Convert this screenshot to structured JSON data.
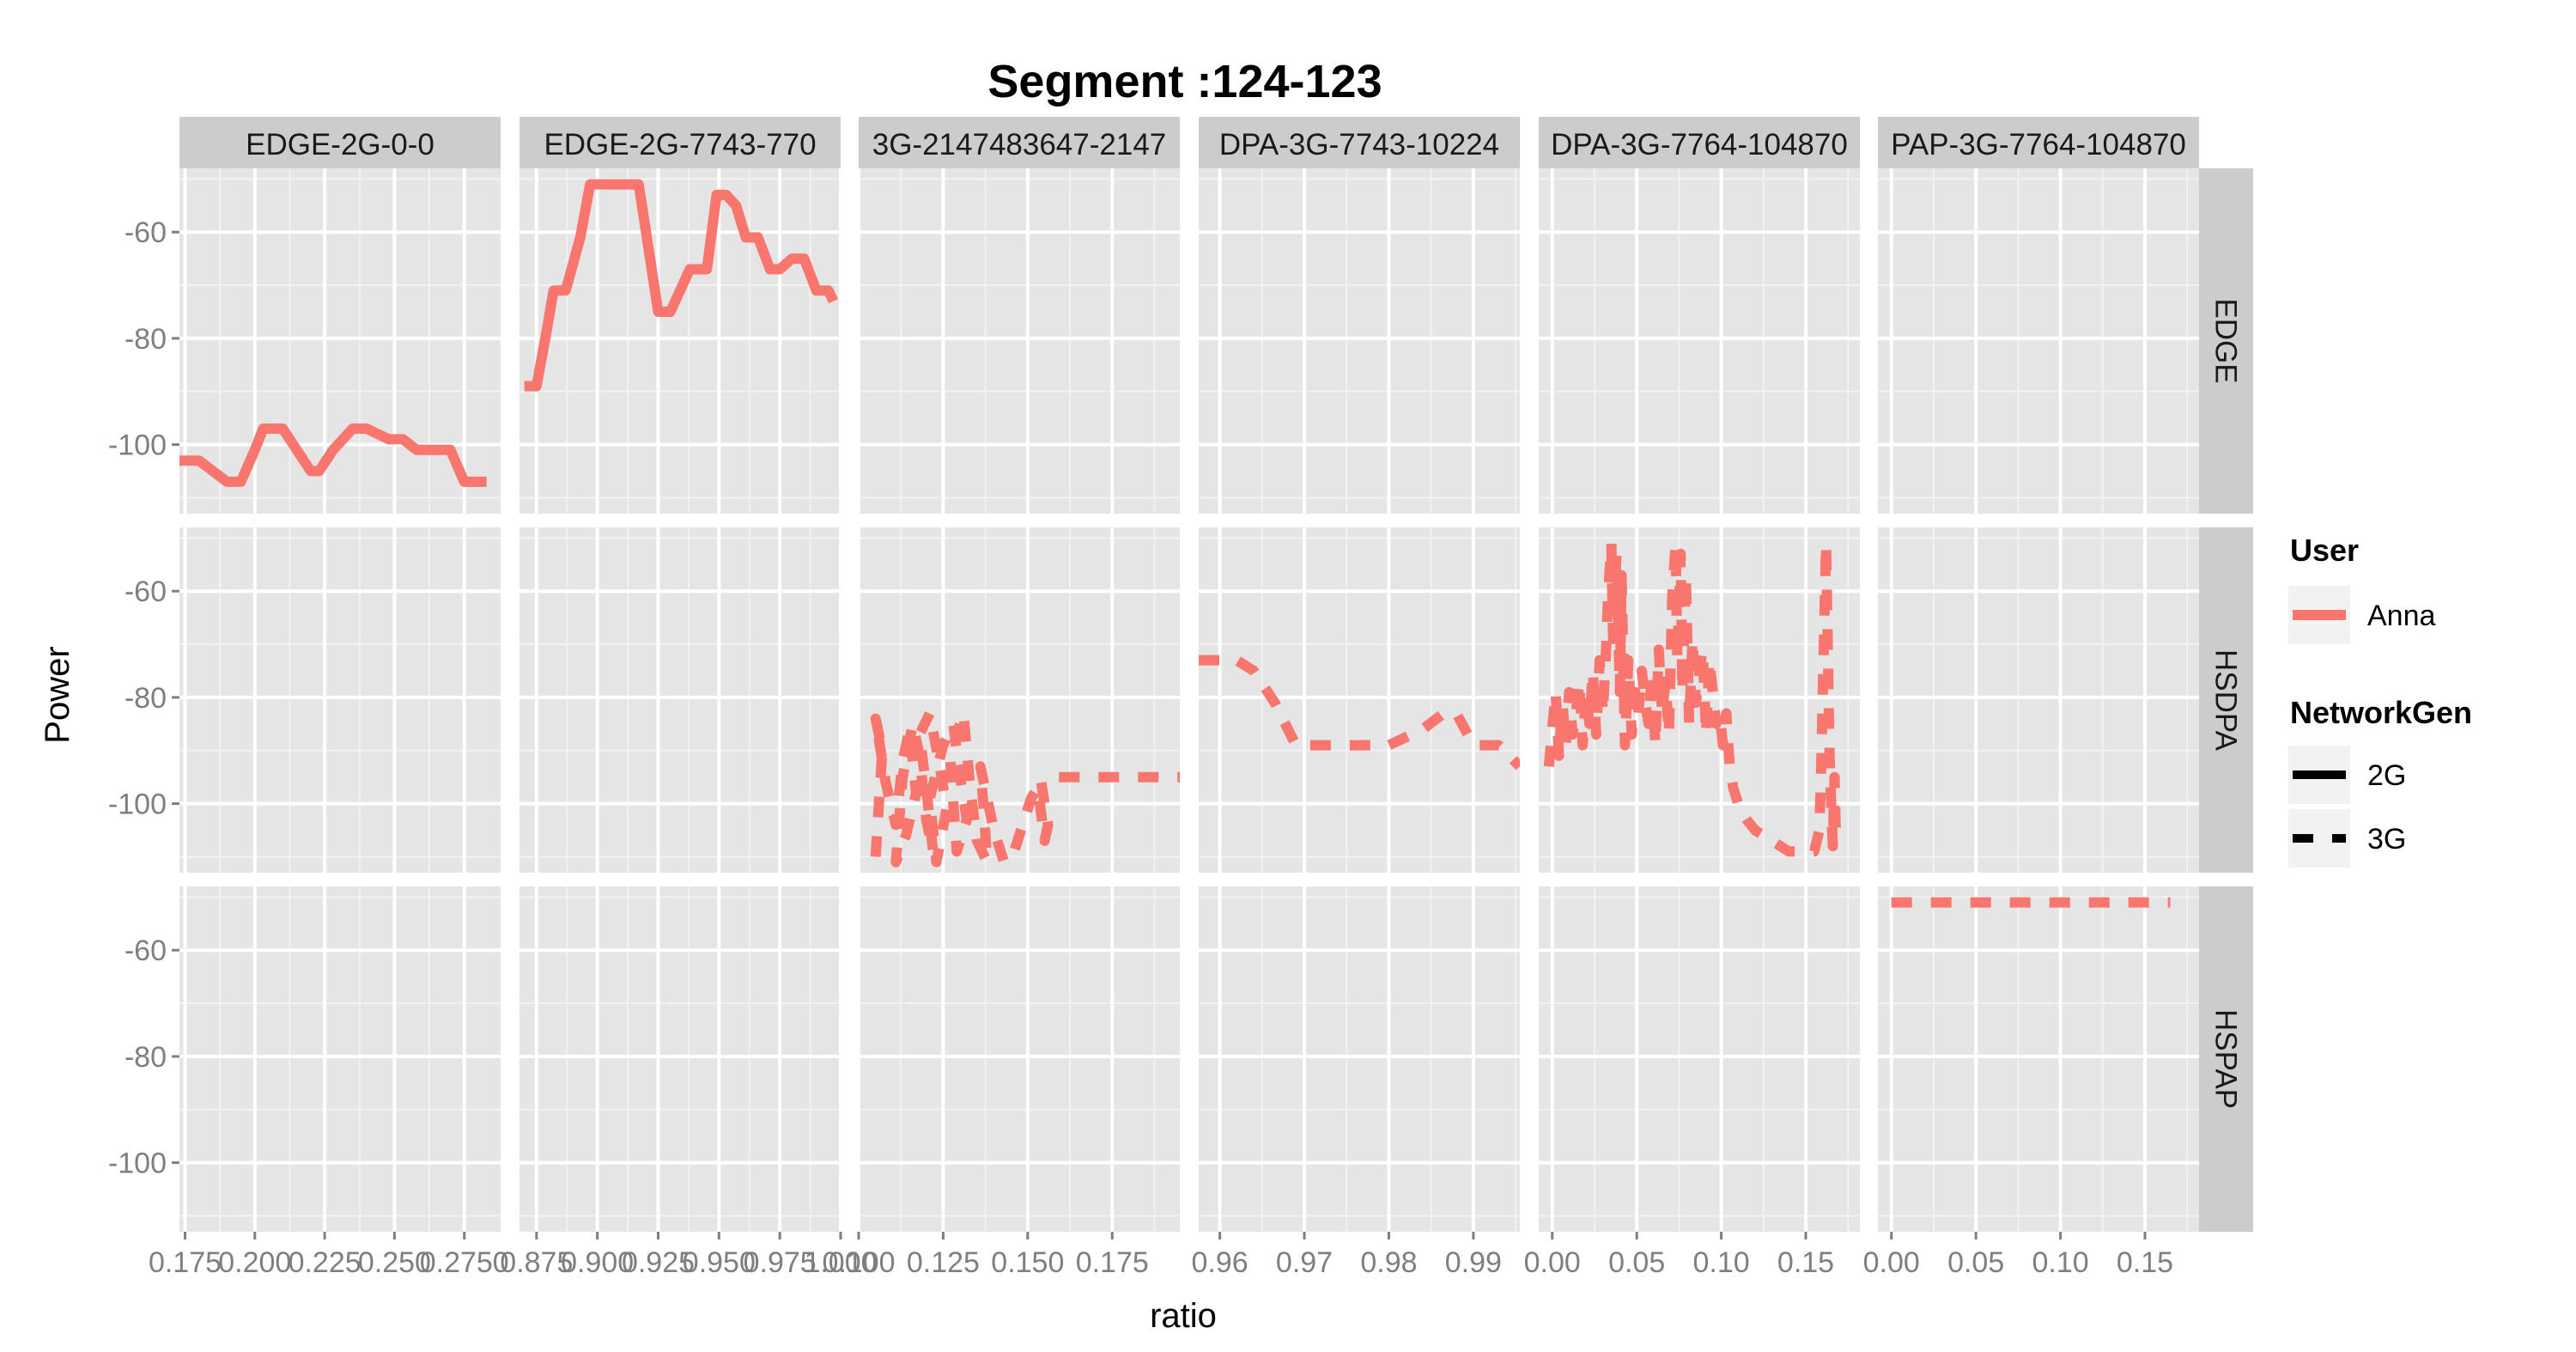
{
  "chart_data": {
    "type": "line",
    "title": "Segment :124-123",
    "xlabel": "ratio",
    "ylabel": "Power",
    "grid": true,
    "legend_position": "right",
    "line_color": "#F8766D",
    "facet_columns": [
      {
        "label": "EDGE-2G-0-0",
        "xlim": [
          0.173,
          0.288
        ],
        "ticks": [
          0.175,
          0.2,
          0.225,
          0.25
        ],
        "tick_labels": [
          "0.175",
          "0.200",
          "0.225",
          "0.250"
        ],
        "clipped_label": {
          "x": 0.275,
          "text": "0.2750"
        }
      },
      {
        "label": "EDGE-2G-7743-770",
        "xlim": [
          0.868,
          1.0
        ],
        "ticks": [
          0.9,
          0.925,
          0.95,
          0.975,
          1.0
        ],
        "tick_labels": [
          "0.900",
          "0.925",
          "0.950",
          "0.975",
          "1.000"
        ],
        "clipped_label": {
          "x": 0.875,
          "text": "0.875"
        }
      },
      {
        "label": "3G-2147483647-2147",
        "xlim": [
          0.1,
          0.195
        ],
        "ticks": [
          0.125,
          0.15,
          0.175
        ],
        "tick_labels": [
          "0.125",
          "0.150",
          "0.175"
        ],
        "clipped_label": {
          "x": 0.1,
          "text": "0.100"
        }
      },
      {
        "label": "DPA-3G-7743-10224",
        "xlim": [
          0.9575,
          0.9955
        ],
        "ticks": [
          0.96,
          0.97,
          0.98,
          0.99
        ],
        "tick_labels": [
          "0.96",
          "0.97",
          "0.98",
          "0.99"
        ]
      },
      {
        "label": "DPA-3G-7764-104870",
        "xlim": [
          -0.008,
          0.182
        ],
        "ticks": [
          0.0,
          0.05,
          0.1,
          0.15
        ],
        "tick_labels": [
          "0.00",
          "0.05",
          "0.10",
          "0.15"
        ]
      },
      {
        "label": "PAP-3G-7764-104870",
        "xlim": [
          -0.008,
          0.182
        ],
        "ticks": [
          0.0,
          0.05,
          0.1,
          0.15
        ],
        "tick_labels": [
          "0.00",
          "0.05",
          "0.10",
          "0.15"
        ]
      }
    ],
    "facet_rows": [
      "EDGE",
      "HSDPA",
      "HSPAP"
    ],
    "ylim": [
      -113,
      -48
    ],
    "yticks": [
      -60,
      -80,
      -100
    ],
    "ytick_labels": [
      "-60",
      "-80",
      "-100"
    ],
    "legend": {
      "user_title": "User",
      "user_entries": [
        "Anna"
      ],
      "network_title": "NetworkGen",
      "network_entries": [
        {
          "label": "2G",
          "dash": "solid"
        },
        {
          "label": "3G",
          "dash": "dashed"
        }
      ]
    },
    "series": [
      {
        "user": "Anna",
        "network": "2G",
        "col": 0,
        "row": 0,
        "x": [
          0.173,
          0.18,
          0.185,
          0.19,
          0.195,
          0.2,
          0.203,
          0.208,
          0.21,
          0.215,
          0.22,
          0.223,
          0.228,
          0.235,
          0.24,
          0.248,
          0.253,
          0.258,
          0.263,
          0.27,
          0.275,
          0.283
        ],
        "y": [
          -103,
          -103,
          -105,
          -107,
          -107,
          -101,
          -97,
          -97,
          -97,
          -101,
          -105,
          -105,
          -101,
          -97,
          -97,
          -99,
          -99,
          -101,
          -101,
          -101,
          -107,
          -107
        ]
      },
      {
        "user": "Anna",
        "network": "2G",
        "col": 1,
        "row": 0,
        "x": [
          0.87,
          0.875,
          0.879,
          0.882,
          0.887,
          0.893,
          0.897,
          0.903,
          0.907,
          0.912,
          0.917,
          0.921,
          0.925,
          0.93,
          0.934,
          0.938,
          0.942,
          0.945,
          0.949,
          0.953,
          0.957,
          0.961,
          0.966,
          0.971,
          0.975,
          0.98,
          0.985,
          0.99,
          0.995,
          0.997
        ],
        "y": [
          -89,
          -89,
          -79,
          -71,
          -71,
          -61,
          -51,
          -51,
          -51,
          -51,
          -51,
          -63,
          -75,
          -75,
          -71,
          -67,
          -67,
          -67,
          -53,
          -53,
          -55,
          -61,
          -61,
          -67,
          -67,
          -65,
          -65,
          -71,
          -71,
          -73
        ]
      },
      {
        "user": "Anna",
        "network": "3G",
        "col": 2,
        "row": 1,
        "x": [
          0.105,
          0.106,
          0.107,
          0.105,
          0.108,
          0.111,
          0.113,
          0.115,
          0.117,
          0.114,
          0.111,
          0.113,
          0.116,
          0.118,
          0.12,
          0.122,
          0.12,
          0.118,
          0.121,
          0.124,
          0.126,
          0.123,
          0.121,
          0.125,
          0.128,
          0.13,
          0.132,
          0.129,
          0.127,
          0.131,
          0.133,
          0.135,
          0.138,
          0.137,
          0.136,
          0.138,
          0.14,
          0.143,
          0.146,
          0.149,
          0.151,
          0.153,
          0.155,
          0.156,
          0.155,
          0.154,
          0.158,
          0.165,
          0.175,
          0.185,
          0.195
        ],
        "y": [
          -110,
          -100,
          -90,
          -84,
          -96,
          -104,
          -92,
          -86,
          -98,
          -106,
          -111,
          -95,
          -85,
          -91,
          -103,
          -109,
          -97,
          -87,
          -83,
          -93,
          -101,
          -111,
          -99,
          -89,
          -85,
          -95,
          -103,
          -109,
          -91,
          -83,
          -97,
          -107,
          -111,
          -101,
          -93,
          -99,
          -105,
          -111,
          -109,
          -103,
          -99,
          -97,
          -107,
          -104,
          -100,
          -96,
          -95,
          -95,
          -95,
          -95,
          -95
        ]
      },
      {
        "user": "Anna",
        "network": "3G",
        "col": 3,
        "row": 1,
        "x": [
          0.9575,
          0.9605,
          0.962,
          0.964,
          0.9665,
          0.969,
          0.972,
          0.976,
          0.98,
          0.984,
          0.9865,
          0.988,
          0.99,
          0.993,
          0.9955
        ],
        "y": [
          -73,
          -73,
          -73,
          -75,
          -81,
          -89,
          -89,
          -89,
          -89,
          -86,
          -83,
          -83,
          -89,
          -89,
          -93
        ]
      },
      {
        "user": "Anna",
        "network": "3G",
        "col": 4,
        "row": 1,
        "x": [
          -0.002,
          0.0,
          0.002,
          0.004,
          0.006,
          0.008,
          0.01,
          0.012,
          0.014,
          0.016,
          0.018,
          0.02,
          0.022,
          0.024,
          0.026,
          0.028,
          0.03,
          0.032,
          0.033,
          0.035,
          0.036,
          0.038,
          0.04,
          0.041,
          0.043,
          0.045,
          0.047,
          0.049,
          0.051,
          0.053,
          0.055,
          0.057,
          0.059,
          0.061,
          0.063,
          0.065,
          0.067,
          0.069,
          0.071,
          0.073,
          0.074,
          0.076,
          0.077,
          0.079,
          0.081,
          0.083,
          0.085,
          0.087,
          0.089,
          0.091,
          0.093,
          0.095,
          0.097,
          0.099,
          0.101,
          0.103,
          0.105,
          0.107,
          0.109,
          0.111,
          0.115,
          0.12,
          0.13,
          0.14,
          0.15,
          0.155,
          0.158,
          0.159,
          0.16,
          0.161,
          0.162,
          0.163,
          0.164,
          0.165,
          0.166,
          0.167,
          0.168
        ],
        "y": [
          -93,
          -86,
          -79,
          -91,
          -81,
          -89,
          -79,
          -87,
          -83,
          -77,
          -89,
          -79,
          -85,
          -75,
          -87,
          -73,
          -83,
          -70,
          -61,
          -51,
          -69,
          -53,
          -79,
          -57,
          -89,
          -73,
          -87,
          -79,
          -83,
          -75,
          -81,
          -85,
          -75,
          -89,
          -71,
          -83,
          -77,
          -87,
          -61,
          -51,
          -73,
          -53,
          -79,
          -57,
          -85,
          -69,
          -81,
          -75,
          -71,
          -87,
          -73,
          -79,
          -85,
          -83,
          -89,
          -83,
          -93,
          -97,
          -99,
          -101,
          -103,
          -105,
          -107,
          -109,
          -109,
          -109,
          -105,
          -95,
          -80,
          -65,
          -51,
          -70,
          -90,
          -100,
          -108,
          -95,
          -108
        ]
      },
      {
        "user": "Anna",
        "network": "3G",
        "col": 5,
        "row": 2,
        "x": [
          0.0,
          0.05,
          0.1,
          0.15,
          0.165
        ],
        "y": [
          -51,
          -51,
          -51,
          -51,
          -51
        ]
      }
    ]
  }
}
